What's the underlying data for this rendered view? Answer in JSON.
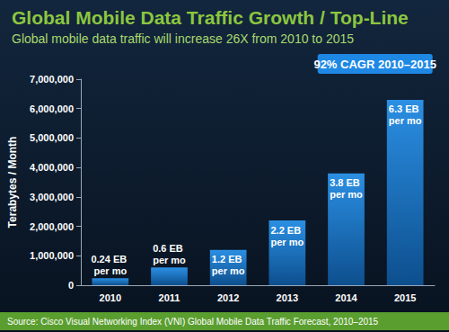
{
  "chart_data": {
    "type": "bar",
    "title": "Global Mobile Data Traffic Growth / Top-Line",
    "subtitle": "Global mobile data traffic will increase 26X from 2010 to 2015",
    "y_label": "Terabytes / Month",
    "categories": [
      "2010",
      "2011",
      "2012",
      "2013",
      "2014",
      "2015"
    ],
    "values": [
      240000,
      600000,
      1200000,
      2200000,
      3800000,
      6300000
    ],
    "value_labels": [
      "0.24 EB per mo",
      "0.6 EB per mo",
      "1.2 EB per mo",
      "2.2 EB per mo",
      "3.8 EB per mo",
      "6.3 EB per mo"
    ],
    "data_labels": true,
    "color": "#2b8fe3",
    "ylim": [
      0,
      7000000
    ],
    "yticks": [
      0,
      {
        "value": 1000000,
        "label": "1,000,000"
      },
      {
        "value": 2000000,
        "label": "2,000,000"
      },
      {
        "value": 3000000,
        "label": "3,000,000"
      },
      {
        "value": 4000000,
        "label": "4,000,000"
      },
      {
        "value": 5000000,
        "label": "5,000,000"
      },
      {
        "value": 6000000,
        "label": "6,000,000"
      },
      {
        "value": 7000000,
        "label": "7,000,000"
      }
    ],
    "grid": false,
    "annotation": "92% CAGR 2010–2015",
    "source": "Source: Cisco Visual Networking Index (VNI) Global Mobile Data Traffic Forecast, 2010–2015"
  }
}
